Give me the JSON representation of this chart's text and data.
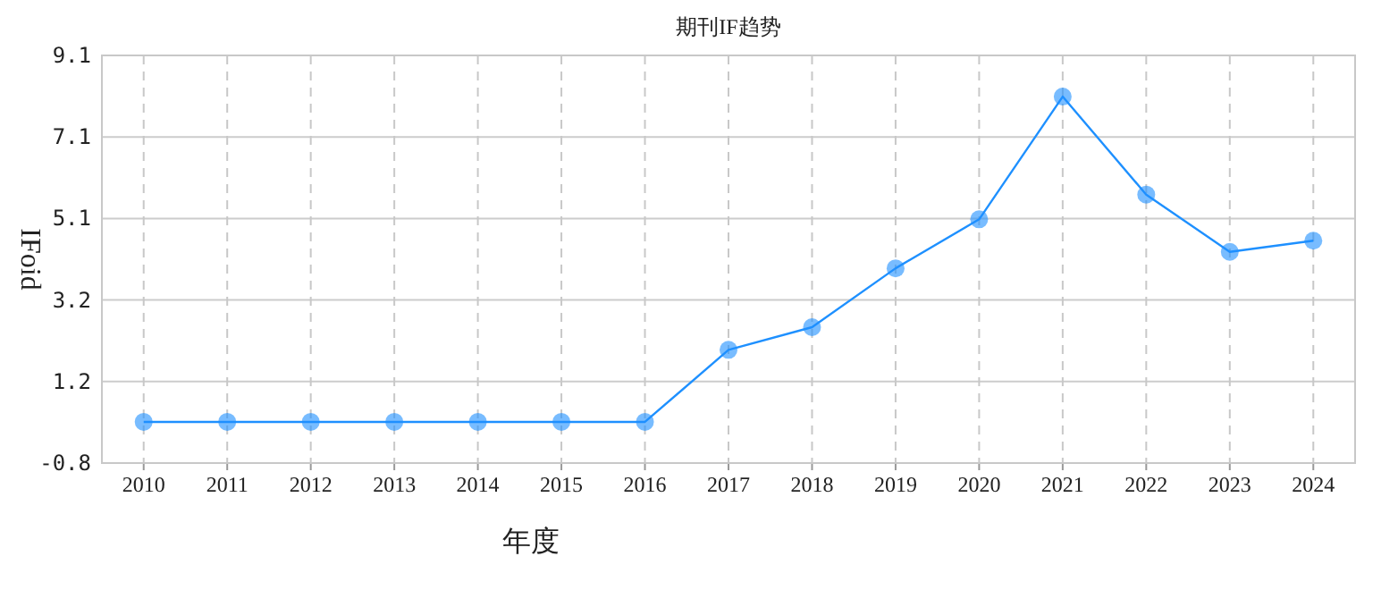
{
  "chart_data": {
    "type": "line",
    "title": "期刊IF趋势",
    "xlabel": "年度",
    "ylabel": "IFoid",
    "categories": [
      "2010",
      "2011",
      "2012",
      "2013",
      "2014",
      "2015",
      "2016",
      "2017",
      "2018",
      "2019",
      "2020",
      "2021",
      "2022",
      "2023",
      "2024"
    ],
    "series": [
      {
        "color": "#1e90ff",
        "values": [
          0.2,
          0.2,
          0.2,
          0.2,
          0.2,
          0.2,
          0.2,
          1.95,
          2.5,
          3.93,
          5.12,
          8.1,
          5.72,
          4.33,
          4.6
        ]
      }
    ],
    "ylim": [
      -0.8,
      9.1
    ],
    "yticks": [
      -0.8,
      {
        "value": 1.18,
        "label": "1.2"
      },
      {
        "value": 3.16,
        "label": "3.2"
      },
      {
        "value": 5.14,
        "label": "5.1"
      },
      {
        "value": 7.12,
        "label": "7.1"
      },
      9.1
    ],
    "grid": true,
    "marker": "circle",
    "line_style": "solid"
  }
}
